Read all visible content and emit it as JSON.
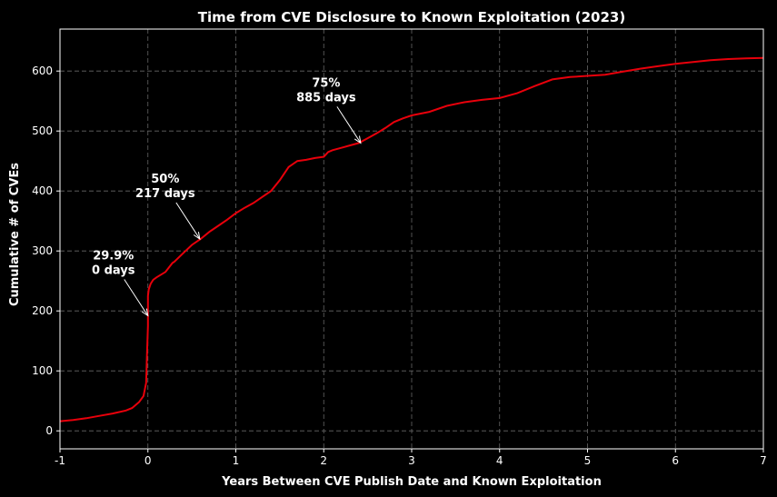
{
  "chart_data": {
    "type": "line",
    "title": "Time from CVE Disclosure to Known Exploitation (2023)",
    "xlabel": "Years Between CVE Publish Date and Known Exploitation",
    "ylabel": "Cumulative # of CVEs",
    "xlim": [
      -1,
      7
    ],
    "ylim": [
      -30,
      670
    ],
    "xticks": [
      -1,
      0,
      1,
      2,
      3,
      4,
      5,
      6,
      7
    ],
    "xtick_labels": [
      "-1",
      "0",
      "1",
      "2",
      "3",
      "4",
      "5",
      "6",
      "7"
    ],
    "yticks": [
      0,
      100,
      200,
      300,
      400,
      500,
      600
    ],
    "grid": true,
    "colors": {
      "background": "#000000",
      "line": "#e8000b",
      "grid": "#666666",
      "text": "#ffffff"
    },
    "series": [
      {
        "x": [
          -1.0,
          -0.85,
          -0.7,
          -0.55,
          -0.4,
          -0.25,
          -0.18,
          -0.1,
          -0.05,
          -0.02,
          -0.01,
          0.0,
          0.0,
          0.01,
          0.03,
          0.06,
          0.1,
          0.2,
          0.28,
          0.3,
          0.4,
          0.5,
          0.6,
          0.7,
          0.8,
          0.9,
          1.0,
          1.1,
          1.2,
          1.3,
          1.4,
          1.5,
          1.6,
          1.7,
          1.8,
          1.9,
          2.0,
          2.05,
          2.1,
          2.2,
          2.3,
          2.4,
          2.5,
          2.6,
          2.7,
          2.8,
          2.9,
          3.0,
          3.2,
          3.4,
          3.6,
          3.8,
          4.0,
          4.2,
          4.4,
          4.6,
          4.8,
          5.0,
          5.2,
          5.4,
          5.6,
          5.8,
          6.0,
          6.2,
          6.4,
          6.6,
          6.8,
          7.0
        ],
        "y": [
          16,
          18,
          21,
          25,
          29,
          34,
          38,
          48,
          58,
          80,
          130,
          175,
          225,
          236,
          245,
          252,
          256,
          265,
          280,
          282,
          296,
          310,
          320,
          332,
          342,
          352,
          363,
          372,
          380,
          390,
          400,
          418,
          440,
          450,
          452,
          455,
          457,
          465,
          468,
          472,
          476,
          480,
          488,
          496,
          505,
          515,
          521,
          526,
          532,
          542,
          548,
          552,
          555,
          563,
          575,
          586,
          590,
          592,
          594,
          599,
          604,
          608,
          612,
          615,
          618,
          620,
          621,
          622
        ]
      }
    ],
    "annotations": [
      {
        "line1": "29.9%",
        "line2": "0 days",
        "x": 0,
        "y": 192
      },
      {
        "line1": "50%",
        "line2": "217 days",
        "x": 0.59,
        "y": 320
      },
      {
        "line1": "75%",
        "line2": "885 days",
        "x": 2.42,
        "y": 480
      }
    ]
  }
}
